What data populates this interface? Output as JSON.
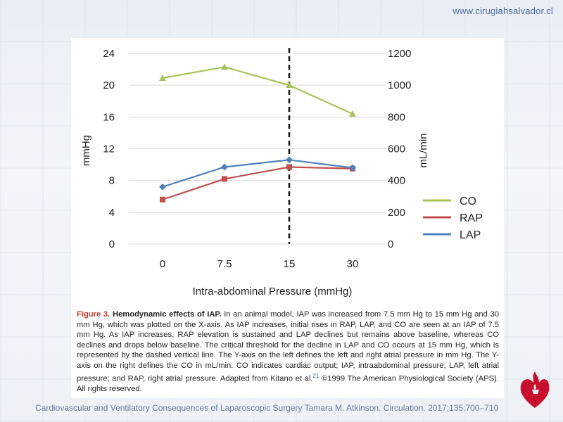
{
  "site": {
    "url": "www.cirugiahsalvador.cl"
  },
  "chart_data": {
    "type": "line",
    "categories": [
      "0",
      "7.5",
      "15",
      "30"
    ],
    "xlabel": "Intra-abdominal Pressure (mmHg)",
    "ylabel_left": "mmHg",
    "ylabel_right": "mL/min",
    "ylim_left": [
      0,
      24
    ],
    "ylim_right": [
      0,
      1200
    ],
    "yticks_left": [
      "0",
      "4",
      "8",
      "12",
      "16",
      "20",
      "24"
    ],
    "yticks_right": [
      "0",
      "200",
      "400",
      "600",
      "800",
      "1000",
      "1200"
    ],
    "series": [
      {
        "name": "CO",
        "axis": "right",
        "color": "#a8c35a",
        "marker": "triangle",
        "values": [
          1045,
          1115,
          1000,
          820
        ]
      },
      {
        "name": "RAP",
        "axis": "left",
        "color": "#c0504d",
        "marker": "square",
        "values": [
          5.6,
          8.2,
          9.7,
          9.5
        ]
      },
      {
        "name": "LAP",
        "axis": "left",
        "color": "#4f81bd",
        "marker": "diamond",
        "values": [
          7.2,
          9.7,
          10.6,
          9.6
        ]
      }
    ],
    "threshold_category": "15",
    "legend_position": "right",
    "grid": true
  },
  "caption": {
    "figure_label": "Figure 3.",
    "title": "Hemodynamic effects of IAP.",
    "text": " In an animal model, IAP was increased from 7.5 mm Hg to 15 mm Hg and 30 mm Hg, which was plotted on the X-axis. As IAP increases, initial rises in RAP, LAP, and CO are seen at an IAP of 7.5 mm Hg. As IAP increases, RAP elevation is sustained and LAP declines but remains above baseline, whereas CO declines and drops below baseline. The critical threshold for the decline in LAP and CO occurs at 15 mm Hg, which is represented by the dashed vertical line. The Y-axis on the left defines the left and right atrial pressure in mm Hg. The Y-axis on the right defines the CO in mL/min. CO indicates cardiac output; IAP, intraabdominal pressure; LAP, left atrial pressure; and RAP, right atrial pressure. Adapted from Kitano et al.",
    "ref": "21",
    "copyright": " ©1999 The American Physiological Society (APS). All rights reserved."
  },
  "footer": {
    "citation": "Cardiovascular and Ventilatory Consequences of Laparoscopic Surgery Tamara M. Atkinson. Circulation. 2017;135:700–710"
  },
  "logo": {
    "icon": "heart-torch-icon",
    "color": "#c8102e"
  }
}
